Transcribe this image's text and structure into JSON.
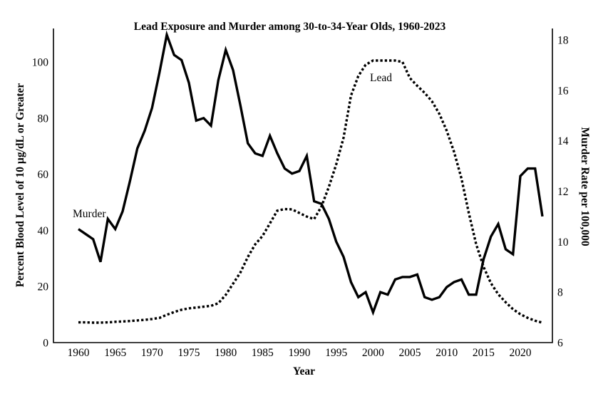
{
  "chart_data": {
    "type": "line",
    "title": "Lead Exposure and Murder among 30-to-34-Year Olds, 1960-2023",
    "xlabel": "Year",
    "x": [
      1960,
      1961,
      1962,
      1963,
      1964,
      1965,
      1966,
      1967,
      1968,
      1969,
      1970,
      1971,
      1972,
      1973,
      1974,
      1975,
      1976,
      1977,
      1978,
      1979,
      1980,
      1981,
      1982,
      1983,
      1984,
      1985,
      1986,
      1987,
      1988,
      1989,
      1990,
      1991,
      1992,
      1993,
      1994,
      1995,
      1996,
      1997,
      1998,
      1999,
      2000,
      2001,
      2002,
      2003,
      2004,
      2005,
      2006,
      2007,
      2008,
      2009,
      2010,
      2011,
      2012,
      2013,
      2014,
      2015,
      2016,
      2017,
      2018,
      2019,
      2020,
      2021,
      2022,
      2023
    ],
    "x_ticks": [
      1960,
      1965,
      1970,
      1975,
      1980,
      1985,
      1990,
      1995,
      2000,
      2005,
      2010,
      2015,
      2020
    ],
    "left_axis": {
      "label": "Percent Blood Level of 10 µg/dL or Greater",
      "ticks": [
        0,
        20,
        40,
        60,
        80,
        100
      ],
      "range": [
        0,
        111.9
      ]
    },
    "right_axis": {
      "label": "Murder Rate per 100,000",
      "ticks": [
        6,
        8,
        10,
        12,
        14,
        16,
        18
      ],
      "range": [
        6,
        18.45
      ]
    },
    "grid": false,
    "legend": "inline-annotations",
    "series": [
      {
        "name": "Murder",
        "axis": "right",
        "style": "solid",
        "color": "#000000",
        "values": [
          10.5,
          10.3,
          10.1,
          9.2,
          10.9,
          10.5,
          11.2,
          12.4,
          13.7,
          14.4,
          15.3,
          16.7,
          18.2,
          17.4,
          17.2,
          16.3,
          14.8,
          14.9,
          14.6,
          16.4,
          17.6,
          16.8,
          15.4,
          13.9,
          13.5,
          13.4,
          14.2,
          13.5,
          12.9,
          12.7,
          12.8,
          13.4,
          11.6,
          11.5,
          10.9,
          10.0,
          9.4,
          8.4,
          7.8,
          8.0,
          7.2,
          8.0,
          7.9,
          8.5,
          8.6,
          8.6,
          8.7,
          7.8,
          7.7,
          7.8,
          8.2,
          8.4,
          8.5,
          7.9,
          7.9,
          9.3,
          10.2,
          10.7,
          9.7,
          9.5,
          12.6,
          12.9,
          12.9,
          11.0
        ]
      },
      {
        "name": "Lead",
        "axis": "left",
        "style": "dotted",
        "color": "#000000",
        "values": [
          7.2,
          7.2,
          7.1,
          7.1,
          7.2,
          7.4,
          7.5,
          7.7,
          7.9,
          8.1,
          8.4,
          8.8,
          9.9,
          10.9,
          11.7,
          12.2,
          12.5,
          12.8,
          13.1,
          14.0,
          17.0,
          21.0,
          25.0,
          30.5,
          35.0,
          38.0,
          42.5,
          47.0,
          47.6,
          47.5,
          46.2,
          44.9,
          44.0,
          48.5,
          55.5,
          63.5,
          73.0,
          88.0,
          95.0,
          99.0,
          100.5,
          100.5,
          100.5,
          100.5,
          100.0,
          94.3,
          91.5,
          89.0,
          86.0,
          81.5,
          75.5,
          68.0,
          58.5,
          46.2,
          35.1,
          27.0,
          21.2,
          17.2,
          14.4,
          11.9,
          10.1,
          8.8,
          7.8,
          7.1
        ]
      }
    ],
    "annotations": [
      {
        "text": "Murder",
        "series": "Murder"
      },
      {
        "text": "Lead",
        "series": "Lead"
      }
    ]
  }
}
